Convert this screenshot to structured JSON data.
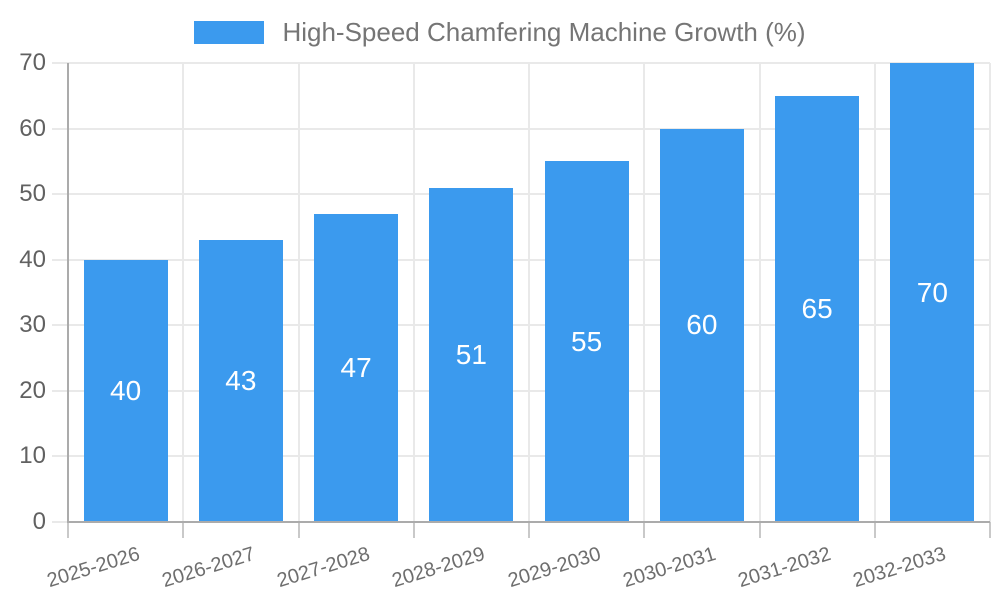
{
  "chart_data": {
    "type": "bar",
    "title": "High-Speed Chamfering Machine Growth (%)",
    "categories": [
      "2025-2026",
      "2026-2027",
      "2027-2028",
      "2028-2029",
      "2029-2030",
      "2030-2031",
      "2031-2032",
      "2032-2033"
    ],
    "values": [
      40,
      43,
      47,
      51,
      55,
      60,
      65,
      70
    ],
    "xlabel": "",
    "ylabel": "",
    "ylim": [
      0,
      70
    ],
    "yticks": [
      0,
      10,
      20,
      30,
      40,
      50,
      60,
      70
    ],
    "grid": true,
    "legend_position": "top",
    "value_labels_shown": true,
    "value_label_position": "center-of-bar",
    "colors": {
      "bar": "#3b9aee",
      "value_label": "#ffffff",
      "grid_line": "#e9e9e9",
      "axis_line": "#ababab",
      "tick_mark": "#c9c9c9",
      "y_tick_label": "#616161",
      "x_tick_label": "#6e6e6e",
      "legend_text": "#757575",
      "background": "#ffffff"
    }
  }
}
